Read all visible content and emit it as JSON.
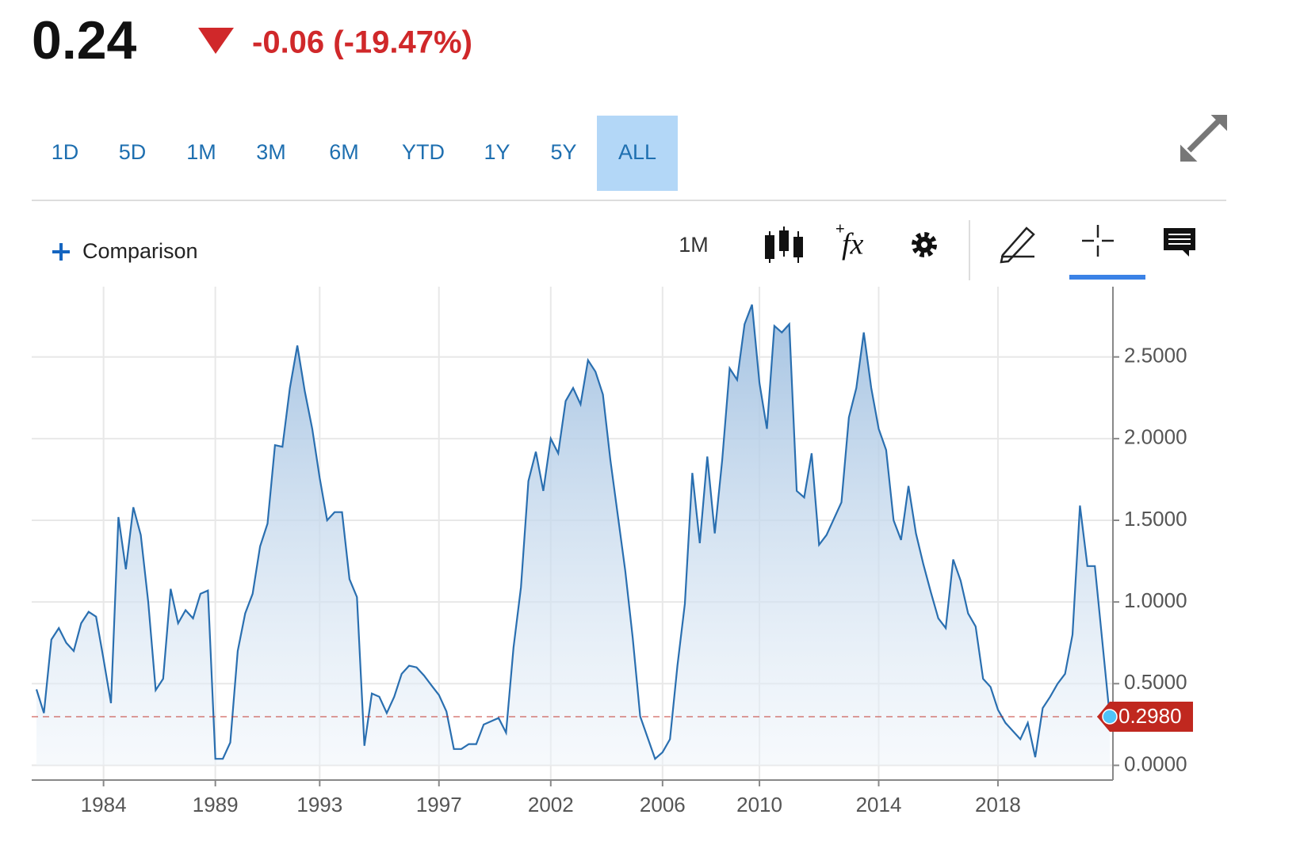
{
  "header": {
    "price": "0.24",
    "change": "-0.06 (-19.47%)"
  },
  "ranges": [
    "1D",
    "5D",
    "1M",
    "3M",
    "6M",
    "YTD",
    "1Y",
    "5Y",
    "ALL"
  ],
  "active_range": 8,
  "toolbar": {
    "comparison": "Comparison",
    "interval": "1M",
    "studies": "fx"
  },
  "chart_data": {
    "type": "area",
    "categories": [
      null,
      null,
      null,
      null,
      null,
      null,
      null,
      null,
      null,
      "1984",
      null,
      null,
      null,
      null,
      null,
      null,
      null,
      null,
      null,
      null,
      null,
      null,
      null,
      null,
      "1989",
      null,
      null,
      null,
      null,
      null,
      null,
      null,
      null,
      null,
      null,
      null,
      null,
      null,
      "1993",
      null,
      null,
      null,
      null,
      null,
      null,
      null,
      null,
      null,
      null,
      null,
      null,
      null,
      null,
      null,
      "1997",
      null,
      null,
      null,
      null,
      null,
      null,
      null,
      null,
      null,
      null,
      null,
      null,
      null,
      null,
      "2002",
      null,
      null,
      null,
      null,
      null,
      null,
      null,
      null,
      null,
      null,
      null,
      null,
      null,
      null,
      "2006",
      null,
      null,
      null,
      null,
      null,
      null,
      null,
      null,
      null,
      null,
      null,
      null,
      "2010",
      null,
      null,
      null,
      null,
      null,
      null,
      null,
      null,
      null,
      null,
      null,
      null,
      null,
      null,
      null,
      "2014",
      null,
      null,
      null,
      null,
      null,
      null,
      null,
      null,
      null,
      null,
      null,
      null,
      null,
      null,
      null,
      "2018",
      null,
      null,
      null,
      null,
      null,
      null,
      null,
      null,
      null,
      null,
      null,
      null,
      null,
      null,
      null
    ],
    "series": [
      {
        "color": "#2a6fb0",
        "values": [
          0.465,
          0.32,
          0.77,
          0.84,
          0.75,
          0.7,
          0.87,
          0.94,
          0.91,
          0.65,
          0.38,
          1.52,
          1.2,
          1.58,
          1.41,
          1.0,
          0.46,
          0.53,
          1.08,
          0.87,
          0.95,
          0.9,
          1.05,
          1.07,
          0.04,
          0.04,
          0.14,
          0.7,
          0.93,
          1.05,
          1.34,
          1.48,
          1.96,
          1.95,
          2.31,
          2.57,
          2.29,
          2.06,
          1.76,
          1.5,
          1.55,
          1.55,
          1.14,
          1.03,
          0.12,
          0.44,
          0.42,
          0.32,
          0.42,
          0.56,
          0.61,
          0.6,
          0.55,
          0.49,
          0.43,
          0.33,
          0.1,
          0.1,
          0.13,
          0.13,
          0.25,
          0.27,
          0.29,
          0.2,
          0.72,
          1.09,
          1.74,
          1.92,
          1.68,
          2.0,
          1.91,
          2.23,
          2.31,
          2.21,
          2.48,
          2.41,
          2.27,
          1.87,
          1.53,
          1.19,
          0.78,
          0.3,
          0.17,
          0.04,
          0.08,
          0.16,
          0.61,
          0.99,
          1.79,
          1.36,
          1.89,
          1.42,
          1.87,
          2.43,
          2.36,
          2.7,
          2.82,
          2.34,
          2.06,
          2.69,
          2.65,
          2.7,
          1.68,
          1.64,
          1.91,
          1.35,
          1.41,
          1.51,
          1.61,
          2.13,
          2.31,
          2.65,
          2.31,
          2.06,
          1.93,
          1.5,
          1.38,
          1.71,
          1.42,
          1.23,
          1.06,
          0.9,
          0.84,
          1.26,
          1.13,
          0.93,
          0.85,
          0.53,
          0.48,
          0.34,
          0.26,
          0.21,
          0.16,
          0.26,
          0.05,
          0.35,
          0.42,
          0.5,
          0.56,
          0.8,
          1.59,
          1.22,
          1.22,
          0.76,
          0.298
        ]
      }
    ],
    "last_value": {
      "value": 0.298,
      "label": "0.2980",
      "color": "#c0281f"
    },
    "ylim": [
      -0.09,
      2.93
    ],
    "yticks": [
      {
        "value": 0,
        "label": "0.0000"
      },
      {
        "value": 0.5,
        "label": "0.5000"
      },
      {
        "value": 1,
        "label": "1.0000"
      },
      {
        "value": 1.5,
        "label": "1.5000"
      },
      {
        "value": 2,
        "label": "2.0000"
      },
      {
        "value": 2.5,
        "label": "2.5000"
      }
    ],
    "grid": true
  }
}
